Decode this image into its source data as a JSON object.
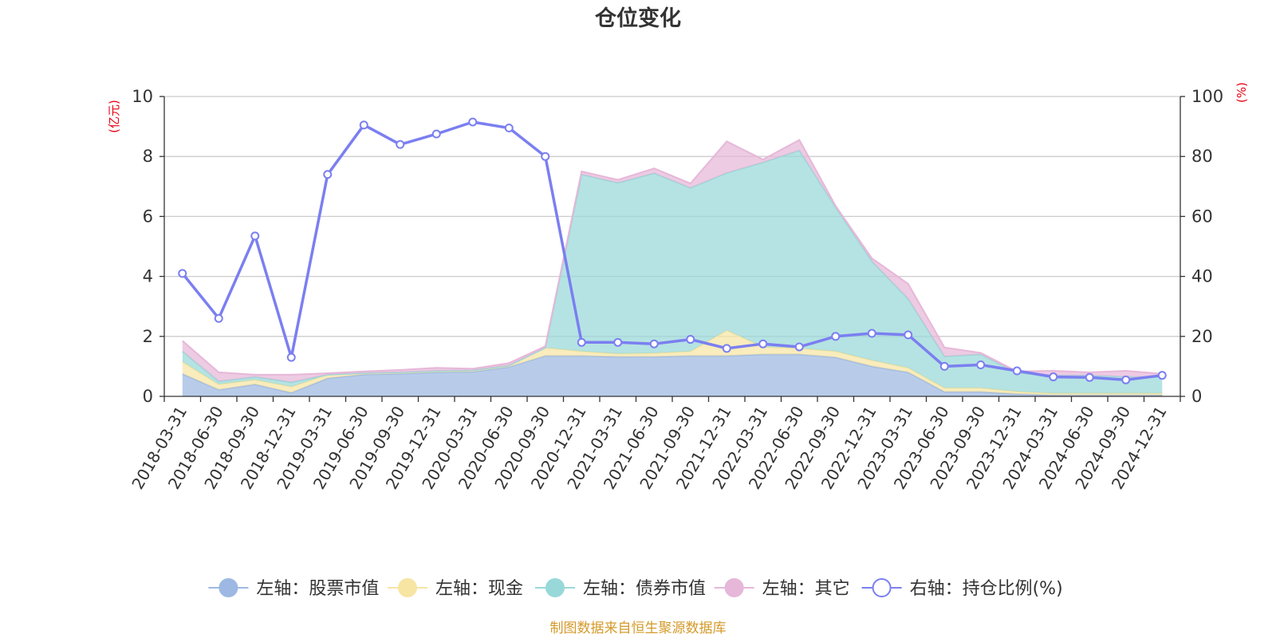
{
  "chart_data": {
    "type": "area",
    "title": "仓位变化",
    "left_unit": "(亿元)",
    "right_unit": "(%)",
    "y_left": {
      "min": 0,
      "max": 10,
      "ticks": [
        0,
        2,
        4,
        6,
        8,
        10
      ]
    },
    "y_right": {
      "min": 0,
      "max": 100,
      "ticks": [
        0,
        20,
        40,
        60,
        80,
        100
      ]
    },
    "grid": true,
    "legend_position": "bottom",
    "categories": [
      "2018-03-31",
      "2018-06-30",
      "2018-09-30",
      "2018-12-31",
      "2019-03-31",
      "2019-06-30",
      "2019-09-30",
      "2019-12-31",
      "2020-03-31",
      "2020-06-30",
      "2020-09-30",
      "2020-12-31",
      "2021-03-31",
      "2021-06-30",
      "2021-09-30",
      "2021-12-31",
      "2022-03-31",
      "2022-06-30",
      "2022-09-30",
      "2022-12-31",
      "2023-03-31",
      "2023-06-30",
      "2023-09-30",
      "2023-12-31",
      "2024-03-31",
      "2024-06-30",
      "2024-09-30",
      "2024-12-31"
    ],
    "stacked_series": [
      {
        "name": "左轴：股票市值",
        "axis": "left",
        "color": "#9db8e2",
        "values": [
          0.75,
          0.22,
          0.4,
          0.12,
          0.6,
          0.73,
          0.75,
          0.8,
          0.82,
          0.98,
          1.35,
          1.35,
          1.32,
          1.32,
          1.35,
          1.35,
          1.4,
          1.4,
          1.3,
          1.0,
          0.8,
          0.15,
          0.15,
          0.08,
          0.04,
          0.04,
          0.04,
          0.04
        ]
      },
      {
        "name": "左轴：现金",
        "axis": "left",
        "color": "#f7e5a3",
        "values": [
          0.4,
          0.18,
          0.15,
          0.2,
          0.12,
          0.05,
          0.05,
          0.05,
          0.05,
          0.05,
          0.27,
          0.15,
          0.1,
          0.12,
          0.15,
          0.85,
          0.25,
          0.2,
          0.2,
          0.2,
          0.15,
          0.13,
          0.13,
          0.08,
          0.06,
          0.06,
          0.06,
          0.06
        ]
      },
      {
        "name": "左轴：债券市值",
        "axis": "left",
        "color": "#99d8d8",
        "values": [
          0.35,
          0.1,
          0.1,
          0.15,
          0,
          0,
          0,
          0,
          0,
          0,
          0,
          5.9,
          5.7,
          6.0,
          5.45,
          5.25,
          6.15,
          6.6,
          4.8,
          3.3,
          2.3,
          1.05,
          1.12,
          0.62,
          0.6,
          0.6,
          0.55,
          0.55
        ]
      },
      {
        "name": "左轴：其它",
        "axis": "left",
        "color": "#e6b7d8",
        "values": [
          0.35,
          0.3,
          0.07,
          0.25,
          0.05,
          0.05,
          0.08,
          0.1,
          0.05,
          0.08,
          0.05,
          0.1,
          0.1,
          0.16,
          0.15,
          1.05,
          0.1,
          0.35,
          0.05,
          0.1,
          0.5,
          0.3,
          0.05,
          0.05,
          0.15,
          0.1,
          0.2,
          0.1
        ]
      }
    ],
    "line_series": {
      "name": "右轴：持仓比例(%)",
      "axis": "right",
      "color": "#7b7ff0",
      "values": [
        41,
        26,
        53.5,
        13,
        74,
        90.5,
        84,
        87.5,
        91.5,
        89.5,
        80,
        18,
        18,
        17.5,
        19,
        16,
        17.5,
        16.5,
        20,
        21,
        20.5,
        10,
        10.5,
        8.5,
        6.5,
        6.3,
        5.5,
        7
      ]
    },
    "source": "制图数据来自恒生聚源数据库"
  }
}
